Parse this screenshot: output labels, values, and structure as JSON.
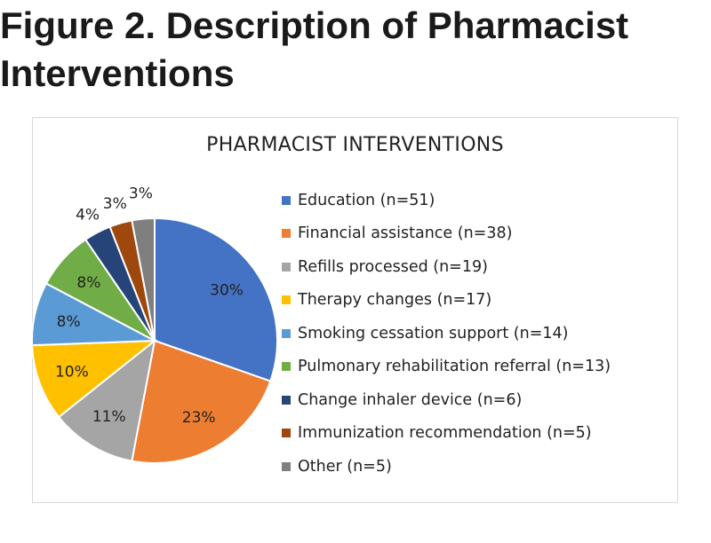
{
  "figure": {
    "title": "Figure 2. Description of Pharmacist Interventions"
  },
  "chart_data": {
    "type": "pie",
    "title": "PHARMACIST INTERVENTIONS",
    "legend_position": "right",
    "slices": [
      {
        "label": "Education (n=51)",
        "value": 51,
        "percent_label": "30%",
        "color": "#4472C4"
      },
      {
        "label": "Financial assistance (n=38)",
        "value": 38,
        "percent_label": "23%",
        "color": "#ED7D31"
      },
      {
        "label": "Refills processed (n=19)",
        "value": 19,
        "percent_label": "11%",
        "color": "#A5A5A5"
      },
      {
        "label": "Therapy changes (n=17)",
        "value": 17,
        "percent_label": "10%",
        "color": "#FFC000"
      },
      {
        "label": "Smoking cessation support (n=14)",
        "value": 14,
        "percent_label": "8%",
        "color": "#5B9BD5"
      },
      {
        "label": "Pulmonary rehabilitation referral (n=13)",
        "value": 13,
        "percent_label": "8%",
        "color": "#70AD47"
      },
      {
        "label": "Change inhaler device (n=6)",
        "value": 6,
        "percent_label": "4%",
        "color": "#264478"
      },
      {
        "label": "Immunization recommendation (n=5)",
        "value": 5,
        "percent_label": "3%",
        "color": "#9E480E"
      },
      {
        "label": "Other (n=5)",
        "value": 5,
        "percent_label": "3%",
        "color": "#7F7F7F"
      }
    ]
  }
}
